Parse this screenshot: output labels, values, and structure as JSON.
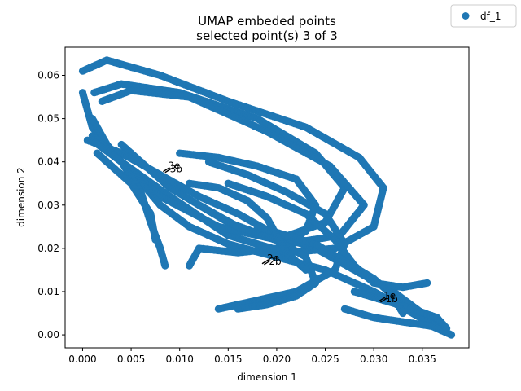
{
  "chart_data": {
    "type": "scatter",
    "title": "UMAP embeded points",
    "subtitle": "selected point(s) 3 of 3",
    "xlabel": "dimension 1",
    "ylabel": "dimension 2",
    "xlim": [
      -0.0018,
      0.0398
    ],
    "ylim": [
      -0.003,
      0.0665
    ],
    "xticks": [
      0.0,
      0.005,
      0.01,
      0.015,
      0.02,
      0.025,
      0.03,
      0.035
    ],
    "xtick_labels": [
      "0.000",
      "0.005",
      "0.010",
      "0.015",
      "0.020",
      "0.025",
      "0.030",
      "0.035"
    ],
    "yticks": [
      0.0,
      0.01,
      0.02,
      0.03,
      0.04,
      0.05,
      0.06
    ],
    "ytick_labels": [
      "0.00",
      "0.01",
      "0.02",
      "0.03",
      "0.04",
      "0.05",
      "0.06"
    ],
    "legend_position": "top-right",
    "grid": false,
    "series": [
      {
        "name": "df_1",
        "color": "#1f77b4",
        "loops": [
          [
            [
              0.0,
              0.061
            ],
            [
              0.0025,
              0.0635
            ],
            [
              0.008,
              0.06
            ],
            [
              0.015,
              0.054
            ],
            [
              0.023,
              0.048
            ],
            [
              0.0285,
              0.041
            ],
            [
              0.031,
              0.034
            ],
            [
              0.03,
              0.025
            ],
            [
              0.026,
              0.02
            ],
            [
              0.021,
              0.019
            ],
            [
              0.015,
              0.023
            ],
            [
              0.009,
              0.032
            ],
            [
              0.004,
              0.04
            ],
            [
              0.001,
              0.048
            ],
            [
              0.0,
              0.056
            ]
          ],
          [
            [
              0.0012,
              0.056
            ],
            [
              0.004,
              0.058
            ],
            [
              0.01,
              0.056
            ],
            [
              0.018,
              0.05
            ],
            [
              0.024,
              0.042
            ],
            [
              0.027,
              0.034
            ],
            [
              0.025,
              0.026
            ],
            [
              0.02,
              0.022
            ],
            [
              0.014,
              0.025
            ],
            [
              0.008,
              0.032
            ],
            [
              0.003,
              0.042
            ],
            [
              0.001,
              0.05
            ]
          ],
          [
            [
              0.002,
              0.054
            ],
            [
              0.005,
              0.0565
            ],
            [
              0.011,
              0.055
            ],
            [
              0.019,
              0.047
            ],
            [
              0.0255,
              0.039
            ],
            [
              0.029,
              0.03
            ],
            [
              0.0265,
              0.023
            ],
            [
              0.021,
              0.021
            ],
            [
              0.015,
              0.026
            ],
            [
              0.009,
              0.034
            ],
            [
              0.004,
              0.044
            ]
          ],
          [
            [
              0.0005,
              0.045
            ],
            [
              0.004,
              0.042
            ],
            [
              0.008,
              0.037
            ],
            [
              0.012,
              0.032
            ],
            [
              0.016,
              0.028
            ],
            [
              0.02,
              0.023
            ],
            [
              0.024,
              0.02
            ],
            [
              0.028,
              0.015
            ],
            [
              0.032,
              0.01
            ],
            [
              0.035,
              0.005
            ],
            [
              0.037,
              0.001
            ]
          ],
          [
            [
              0.001,
              0.046
            ],
            [
              0.005,
              0.038
            ],
            [
              0.008,
              0.03
            ],
            [
              0.011,
              0.025
            ],
            [
              0.015,
              0.021
            ],
            [
              0.02,
              0.018
            ],
            [
              0.025,
              0.015
            ],
            [
              0.03,
              0.01
            ],
            [
              0.034,
              0.005
            ],
            [
              0.0375,
              0.0005
            ]
          ],
          [
            [
              0.001,
              0.045
            ],
            [
              0.004,
              0.04
            ],
            [
              0.006,
              0.033
            ],
            [
              0.007,
              0.026
            ],
            [
              0.008,
              0.02
            ],
            [
              0.0085,
              0.016
            ]
          ],
          [
            [
              0.0015,
              0.042
            ],
            [
              0.005,
              0.035
            ],
            [
              0.007,
              0.028
            ],
            [
              0.0075,
              0.022
            ]
          ],
          [
            [
              0.01,
              0.042
            ],
            [
              0.014,
              0.041
            ],
            [
              0.018,
              0.039
            ],
            [
              0.022,
              0.036
            ],
            [
              0.024,
              0.03
            ],
            [
              0.023,
              0.024
            ],
            [
              0.02,
              0.02
            ],
            [
              0.016,
              0.019
            ],
            [
              0.012,
              0.02
            ],
            [
              0.011,
              0.016
            ]
          ],
          [
            [
              0.013,
              0.04
            ],
            [
              0.017,
              0.037
            ],
            [
              0.021,
              0.033
            ],
            [
              0.025,
              0.028
            ],
            [
              0.027,
              0.021
            ],
            [
              0.026,
              0.015
            ],
            [
              0.022,
              0.01
            ],
            [
              0.018,
              0.008
            ],
            [
              0.014,
              0.006
            ]
          ],
          [
            [
              0.012,
              0.03
            ],
            [
              0.016,
              0.025
            ],
            [
              0.02,
              0.022
            ],
            [
              0.023,
              0.018
            ],
            [
              0.024,
              0.012
            ],
            [
              0.022,
              0.009
            ],
            [
              0.019,
              0.007
            ],
            [
              0.016,
              0.006
            ]
          ],
          [
            [
              0.015,
              0.035
            ],
            [
              0.019,
              0.032
            ],
            [
              0.023,
              0.028
            ],
            [
              0.026,
              0.022
            ],
            [
              0.028,
              0.016
            ],
            [
              0.03,
              0.012
            ],
            [
              0.033,
              0.011
            ],
            [
              0.0355,
              0.012
            ]
          ],
          [
            [
              0.027,
              0.006
            ],
            [
              0.03,
              0.004
            ],
            [
              0.033,
              0.003
            ],
            [
              0.036,
              0.002
            ],
            [
              0.038,
              0.0
            ]
          ],
          [
            [
              0.028,
              0.01
            ],
            [
              0.031,
              0.008
            ],
            [
              0.034,
              0.006
            ],
            [
              0.0365,
              0.004
            ],
            [
              0.0375,
              0.0015
            ]
          ],
          [
            [
              0.018,
              0.025
            ],
            [
              0.021,
              0.023
            ],
            [
              0.024,
              0.021
            ],
            [
              0.027,
              0.017
            ],
            [
              0.03,
              0.013
            ],
            [
              0.032,
              0.009
            ],
            [
              0.033,
              0.005
            ]
          ],
          [
            [
              0.011,
              0.035
            ],
            [
              0.014,
              0.034
            ],
            [
              0.017,
              0.031
            ],
            [
              0.019,
              0.027
            ],
            [
              0.02,
              0.023
            ],
            [
              0.021,
              0.019
            ],
            [
              0.023,
              0.015
            ]
          ]
        ]
      }
    ],
    "annotations": [
      {
        "text": "3e",
        "x": 0.0088,
        "y": 0.0385
      },
      {
        "text": "3b",
        "x": 0.009,
        "y": 0.0383
      },
      {
        "text": "2e",
        "x": 0.019,
        "y": 0.0172
      },
      {
        "text": "2b",
        "x": 0.0192,
        "y": 0.017
      },
      {
        "text": "1e",
        "x": 0.031,
        "y": 0.0085
      },
      {
        "text": "1b",
        "x": 0.0312,
        "y": 0.0083
      }
    ]
  }
}
